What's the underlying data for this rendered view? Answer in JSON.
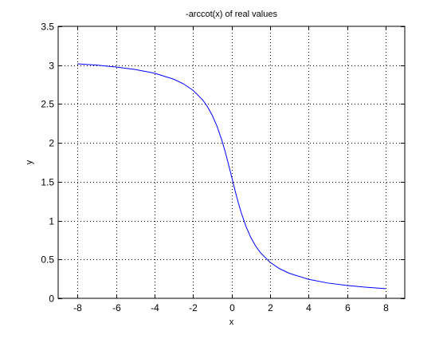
{
  "chart_data": {
    "type": "line",
    "title": "-arccot(x) of real values",
    "xlabel": "x",
    "ylabel": "y",
    "xlim": [
      -9,
      9
    ],
    "ylim": [
      0,
      3.5
    ],
    "xticks": [
      -8,
      -6,
      -4,
      -2,
      0,
      2,
      4,
      6,
      8
    ],
    "yticks": [
      0,
      0.5,
      1,
      1.5,
      2,
      2.5,
      3,
      3.5
    ],
    "xtick_labels": [
      "-8",
      "-6",
      "-4",
      "-2",
      "0",
      "2",
      "4",
      "6",
      "8"
    ],
    "ytick_labels": [
      "0",
      "0.5",
      "1",
      "1.5",
      "2",
      "2.5",
      "3",
      "3.5"
    ],
    "grid": true,
    "series": [
      {
        "color": "#0000ff",
        "x": [
          -8,
          -7,
          -6,
          -5,
          -4,
          -3,
          -2.5,
          -2,
          -1.5,
          -1.25,
          -1,
          -0.75,
          -0.5,
          -0.35,
          -0.2,
          -0.1,
          0,
          0.1,
          0.2,
          0.35,
          0.5,
          0.75,
          1,
          1.25,
          1.5,
          2,
          2.5,
          3,
          4,
          5,
          6,
          7,
          8
        ],
        "y": [
          3.017,
          3.001,
          2.976,
          2.944,
          2.897,
          2.82,
          2.761,
          2.678,
          2.554,
          2.467,
          2.356,
          2.214,
          2.034,
          1.908,
          1.768,
          1.67,
          1.571,
          1.471,
          1.373,
          1.234,
          1.107,
          0.927,
          0.785,
          0.675,
          0.588,
          0.464,
          0.381,
          0.322,
          0.245,
          0.197,
          0.165,
          0.142,
          0.124
        ]
      }
    ]
  }
}
